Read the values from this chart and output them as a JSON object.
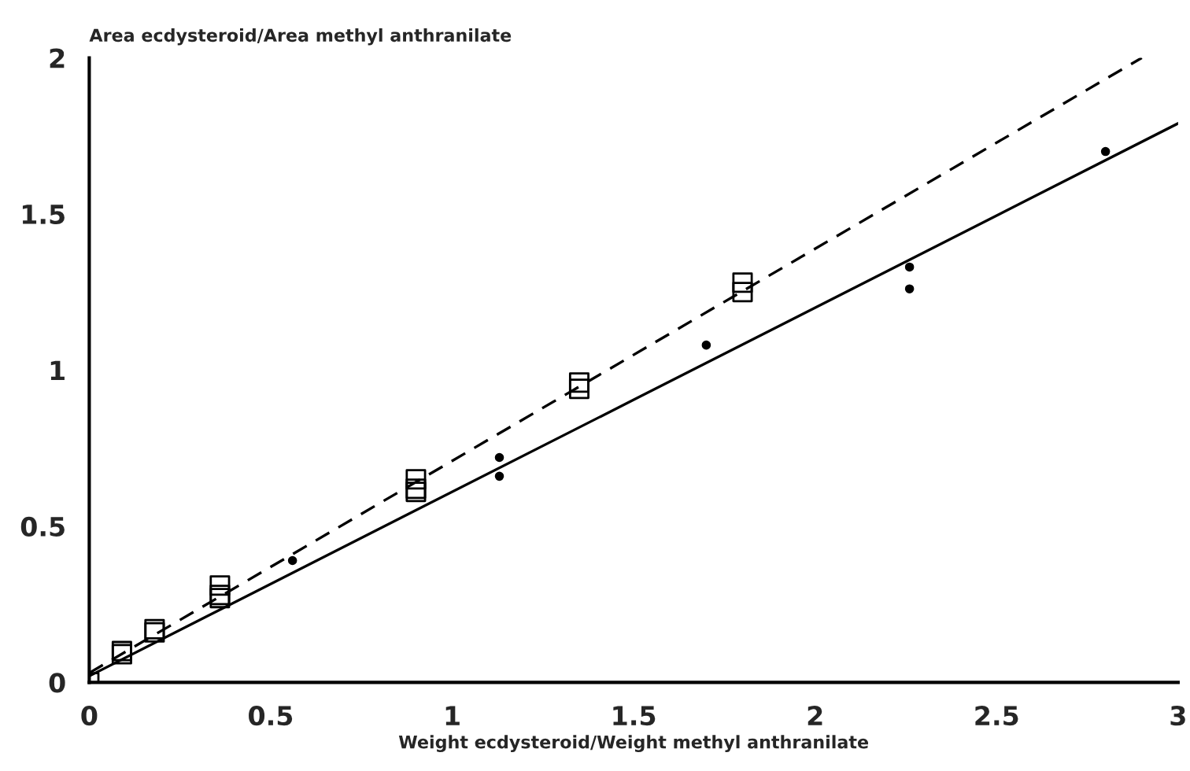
{
  "chart_data": {
    "type": "scatter",
    "xlabel": "Weight ecdysteroid/Weight methyl anthranilate",
    "ylabel": "Area ecdysteroid/Area methyl anthranilate",
    "xlim": [
      0,
      3
    ],
    "ylim": [
      0,
      2
    ],
    "xticks": [
      0,
      0.5,
      1,
      1.5,
      2,
      2.5,
      3
    ],
    "yticks": [
      0,
      0.5,
      1,
      1.5,
      2
    ],
    "grid": false,
    "legend": false,
    "series": [
      {
        "marker": "square",
        "color": "#000000",
        "x": [
          0,
          0.09,
          0.09,
          0.18,
          0.18,
          0.36,
          0.36,
          0.36,
          0.9,
          0.9,
          0.9,
          1.35,
          1.35,
          1.8,
          1.8
        ],
        "values": [
          0,
          0.1,
          0.09,
          0.17,
          0.16,
          0.31,
          0.28,
          0.27,
          0.65,
          0.62,
          0.61,
          0.96,
          0.94,
          1.28,
          1.25
        ]
      },
      {
        "marker": "circle",
        "color": "#000000",
        "x": [
          0.56,
          1.13,
          1.13,
          1.7,
          2.26,
          2.26,
          2.8
        ],
        "values": [
          0.39,
          0.72,
          0.66,
          1.08,
          1.33,
          1.26,
          1.7
        ]
      },
      {
        "type": "line",
        "line_style": "dashed",
        "marker": "none",
        "color": "#000000",
        "x": [
          0,
          2.9
        ],
        "values": [
          0.03,
          2.0
        ]
      },
      {
        "type": "line",
        "line_style": "solid",
        "marker": "none",
        "color": "#000000",
        "x": [
          0,
          3
        ],
        "values": [
          0.02,
          1.79
        ]
      }
    ]
  }
}
